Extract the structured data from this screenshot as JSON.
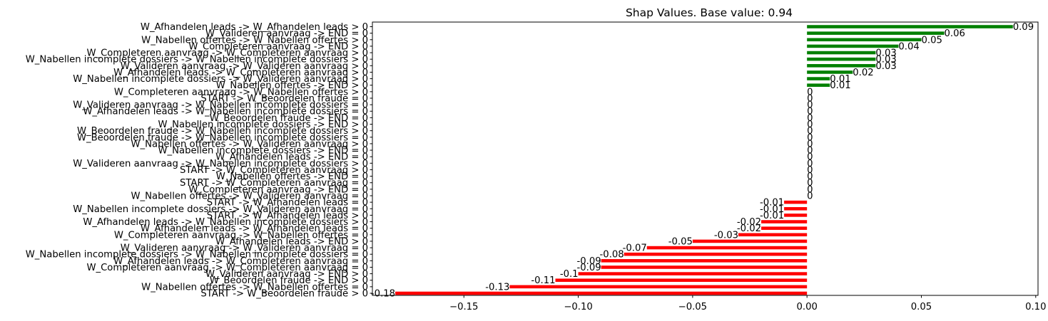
{
  "chart_data": {
    "type": "bar",
    "orientation": "horizontal",
    "title": "Shap Values. Base value: 0.94",
    "xlabel": "",
    "ylabel": "",
    "xlim": [
      -0.19,
      0.101
    ],
    "xticks": [
      -0.15,
      -0.1,
      -0.05,
      0.0,
      0.05,
      0.1
    ],
    "xtick_labels": [
      "−0.15",
      "−0.10",
      "−0.05",
      "0.00",
      "0.05",
      "0.10"
    ],
    "grid": false,
    "positive_color": "#008000",
    "negative_color": "#ff0000",
    "categories": [
      "W_Afhandelen leads -> W_Afhandelen leads > 0",
      "W_Valideren aanvraag -> END = 0",
      "W_Nabellen offertes -> W_Nabellen offertes > 0",
      "W_Completeren aanvraag -> END > 0",
      "W_Completeren aanvraag -> W_Completeren aanvraag > 0",
      "W_Nabellen incomplete dossiers -> W_Nabellen incomplete dossiers > 0",
      "W_Valideren aanvraag -> W_Valideren aanvraag > 0",
      "W_Afhandelen leads -> W_Completeren aanvraag > 0",
      "W_Nabellen incomplete dossiers -> W_Valideren aanvraag > 0",
      "W_Nabellen offertes -> END > 0",
      "W_Completeren aanvraag -> W_Nabellen offertes > 0",
      "START -> W_Beoordelen fraude = 0",
      "W_Valideren aanvraag -> W_Nabellen incomplete dossiers = 0",
      "W_Afhandelen leads -> W_Nabellen incomplete dossiers = 0",
      "W_Beoordelen fraude -> END = 0",
      "W_Nabellen incomplete dossiers -> END > 0",
      "W_Beoordelen fraude -> W_Nabellen incomplete dossiers > 0",
      "W_Beoordelen fraude -> W_Nabellen incomplete dossiers = 0",
      "W_Nabellen offertes -> W_Valideren aanvraag > 0",
      "W_Nabellen incomplete dossiers -> END = 0",
      "W_Afhandelen leads -> END = 0",
      "W_Valideren aanvraag -> W_Nabellen incomplete dossiers > 0",
      "START -> W_Completeren aanvraag > 0",
      "W_Nabellen offertes -> END = 0",
      "START -> W_Completeren aanvraag = 0",
      "W_Completeren aanvraag -> END = 0",
      "W_Nabellen offertes -> W_Valideren aanvraag = 0",
      "START -> W_Afhandelen leads = 0",
      "W_Nabellen incomplete dossiers -> W_Valideren aanvraag = 0",
      "START -> W_Afhandelen leads > 0",
      "W_Afhandelen leads -> W_Nabellen incomplete dossiers > 0",
      "W_Afhandelen leads -> W_Afhandelen leads = 0",
      "W_Completeren aanvraag -> W_Nabellen offertes = 0",
      "W_Afhandelen leads -> END > 0",
      "W_Valideren aanvraag -> W_Valideren aanvraag = 0",
      "W_Nabellen incomplete dossiers -> W_Nabellen incomplete dossiers = 0",
      "W_Afhandelen leads -> W_Completeren aanvraag = 0",
      "W_Completeren aanvraag -> W_Completeren aanvraag = 0",
      "W_Valideren aanvraag -> END > 0",
      "W_Beoordelen fraude -> END > 0",
      "W_Nabellen offertes -> W_Nabellen offertes = 0",
      "START -> W_Beoordelen fraude > 0"
    ],
    "values": [
      0.09,
      0.06,
      0.05,
      0.04,
      0.03,
      0.03,
      0.03,
      0.02,
      0.01,
      0.01,
      0,
      0,
      0,
      0,
      0,
      0,
      0,
      0,
      0,
      0,
      0,
      0,
      0,
      0,
      0,
      0,
      0,
      -0.01,
      -0.01,
      -0.01,
      -0.02,
      -0.02,
      -0.03,
      -0.05,
      -0.07,
      -0.08,
      -0.09,
      -0.09,
      -0.1,
      -0.11,
      -0.13,
      -0.18
    ],
    "value_labels": [
      "0.09",
      "0.06",
      "0.05",
      "0.04",
      "0.03",
      "0.03",
      "0.03",
      "0.02",
      "0.01",
      "0.01",
      "0",
      "0",
      "0",
      "0",
      "0",
      "0",
      "0",
      "0",
      "0",
      "0",
      "0",
      "0",
      "0",
      "0",
      "0",
      "0",
      "0",
      "-0.01",
      "-0.01",
      "-0.01",
      "-0.02",
      "-0.02",
      "-0.03",
      "-0.05",
      "-0.07",
      "-0.08",
      "-0.09",
      "-0.09",
      "-0.1",
      "-0.11",
      "-0.13",
      "-0.18"
    ]
  }
}
